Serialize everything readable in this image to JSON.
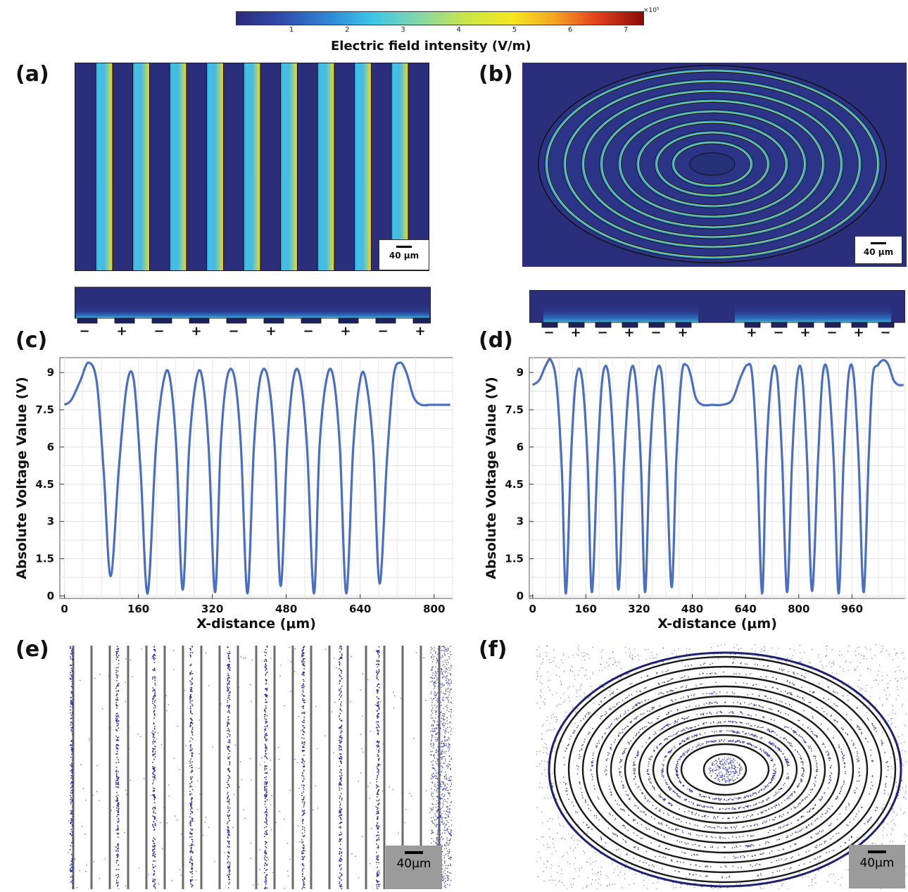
{
  "colorbar": {
    "title": "Electric field intensity (V/m)",
    "ticks": [
      "1",
      "2",
      "3",
      "4",
      "5",
      "6",
      "7"
    ],
    "exponent": "×10⁵"
  },
  "panels": {
    "a": "(a)",
    "b": "(b)",
    "c": "(c)",
    "d": "(d)",
    "e": "(e)",
    "f": "(f)"
  },
  "scalebars": {
    "a": "40 μm",
    "b": "40 μm",
    "e": "40μm",
    "f": "40μm"
  },
  "polarity_c": [
    "−",
    "+",
    "−",
    "+",
    "−",
    "+",
    "−",
    "+",
    "−",
    "+"
  ],
  "polarity_d_left": [
    "−",
    "+",
    "−",
    "+",
    "−",
    "+"
  ],
  "polarity_d_right": [
    "+",
    "−",
    "+",
    "−",
    "+",
    "−"
  ],
  "colors": {
    "field_bg": "#2b2e7a",
    "line": "#4a6fc2"
  },
  "chart_data": [
    {
      "type": "line",
      "panel": "(c)",
      "xlabel": "X-distance (μm)",
      "ylabel": "Absolute Voltage Value (V)",
      "xlim": [
        -10,
        840
      ],
      "ylim": [
        -0.1,
        9.6
      ],
      "xticks": [
        "0",
        "160",
        "320",
        "480",
        "640",
        "800"
      ],
      "yticks": [
        "0",
        "1.5",
        "3",
        "4.5",
        "6",
        "7.5",
        "9"
      ],
      "series": [
        {
          "x": [
            0,
            15,
            35,
            52,
            70,
            85,
            100,
            118,
            135,
            150,
            165,
            180,
            198,
            215,
            228,
            242,
            256,
            270,
            285,
            298,
            312,
            326,
            338,
            352,
            368,
            382,
            396,
            410,
            424,
            440,
            455,
            468,
            482,
            496,
            510,
            525,
            540,
            552,
            568,
            582,
            596,
            610,
            625,
            640,
            652,
            668,
            682,
            698,
            712,
            726,
            740,
            756,
            772,
            790,
            805,
            820,
            835
          ],
          "y": [
            7.7,
            7.9,
            8.7,
            9.4,
            8.6,
            5.0,
            0.8,
            5.2,
            8.5,
            8.7,
            5.0,
            0.1,
            6.0,
            8.7,
            8.8,
            6.0,
            0.25,
            6.0,
            8.7,
            8.8,
            6.0,
            0.15,
            6.0,
            8.8,
            8.8,
            6.0,
            0.1,
            6.0,
            8.8,
            8.8,
            6.0,
            0.4,
            6.0,
            8.8,
            8.8,
            6.0,
            0.1,
            6.0,
            8.8,
            8.8,
            6.0,
            0.1,
            6.0,
            8.7,
            8.7,
            6.0,
            0.5,
            5.5,
            8.8,
            9.4,
            9.0,
            8.0,
            7.7,
            7.7,
            7.7,
            7.7,
            7.7
          ]
        }
      ]
    },
    {
      "type": "line",
      "panel": "(d)",
      "xlabel": "X-distance (μm)",
      "ylabel": "Absolute Voltage Value (V)",
      "xlim": [
        -10,
        1120
      ],
      "ylim": [
        -0.1,
        9.6
      ],
      "xticks": [
        "0",
        "160",
        "320",
        "480",
        "640",
        "800",
        "960"
      ],
      "yticks": [
        "0",
        "1.5",
        "3",
        "4.5",
        "6",
        "7.5",
        "9"
      ],
      "series": [
        {
          "x": [
            0,
            20,
            40,
            55,
            72,
            88,
            100,
            115,
            130,
            148,
            165,
            178,
            195,
            210,
            228,
            245,
            258,
            275,
            292,
            308,
            325,
            338,
            352,
            370,
            388,
            402,
            418,
            432,
            448,
            462,
            475,
            490,
            510,
            540,
            570,
            600,
            625,
            645,
            660,
            675,
            690,
            702,
            718,
            735,
            750,
            765,
            780,
            795,
            810,
            825,
            840,
            858,
            872,
            888,
            905,
            920,
            935,
            950,
            965,
            980,
            995,
            1010,
            1022,
            1038,
            1055,
            1070,
            1085,
            1100,
            1115
          ],
          "y": [
            8.5,
            8.7,
            9.3,
            9.5,
            8.5,
            5.0,
            0.1,
            5.5,
            8.7,
            8.8,
            5.5,
            0.15,
            5.5,
            8.8,
            8.9,
            5.5,
            0.25,
            5.5,
            8.8,
            8.9,
            5.5,
            0.15,
            5.5,
            8.8,
            8.9,
            5.5,
            0.35,
            5.5,
            8.9,
            9.3,
            8.9,
            8.0,
            7.7,
            7.7,
            7.7,
            7.9,
            8.8,
            9.3,
            8.9,
            5.5,
            0.1,
            5.5,
            8.8,
            8.9,
            5.5,
            0.15,
            5.5,
            8.8,
            8.9,
            5.5,
            0.2,
            5.5,
            8.9,
            8.9,
            5.5,
            0.1,
            5.5,
            8.9,
            8.9,
            5.5,
            0.15,
            5.5,
            8.8,
            9.3,
            9.5,
            9.3,
            8.7,
            8.5,
            8.5
          ]
        }
      ]
    }
  ]
}
